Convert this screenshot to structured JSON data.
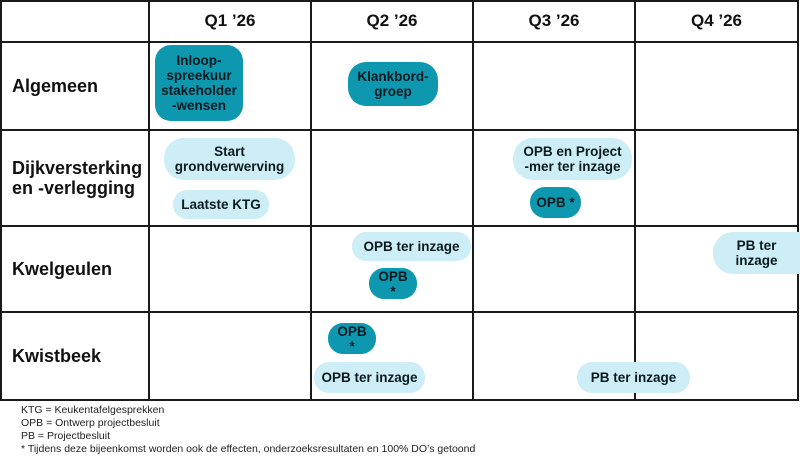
{
  "quarters": [
    "Q1 ’26",
    "Q2 ’26",
    "Q3 ’26",
    "Q4 ’26"
  ],
  "rows": [
    {
      "label": "Algemeen"
    },
    {
      "label": "Dijkversterking\nen -verlegging"
    },
    {
      "label": "Kwelgeulen"
    },
    {
      "label": "Kwistbeek"
    }
  ],
  "items": {
    "inloopspreekuur": "Inloop-\nspreekuur\nstakeholder\n-wensen",
    "klankbordgroep": "Klankbord-\ngroep",
    "start_grondverwerving": "Start\ngrondverwerving",
    "laatste_ktg": "Laatste KTG",
    "opb_project_mer": "OPB en Project\n-mer ter inzage",
    "opb_dijk": "OPB *",
    "opb_ter_inzage_kwel": "OPB ter inzage",
    "opb_kwel": "OPB *",
    "pb_kwel": "PB ter\ninzage",
    "opb_kwist": "OPB *",
    "opb_ter_inzage_kwist": "OPB ter inzage",
    "pb_ter_inzage_kwist": "PB ter inzage"
  },
  "legend": [
    "KTG = Keukentafelgesprekken",
    "OPB = Ontwerp projectbesluit",
    "PB = Projectbesluit",
    "* Tijdens deze bijeenkomst worden ook de effecten, onderzoeksresultaten en 100% DO’s getoond"
  ],
  "colors": {
    "dark": "#0e98b0",
    "light": "#cdeef6",
    "grid": "#1a1a1a"
  }
}
